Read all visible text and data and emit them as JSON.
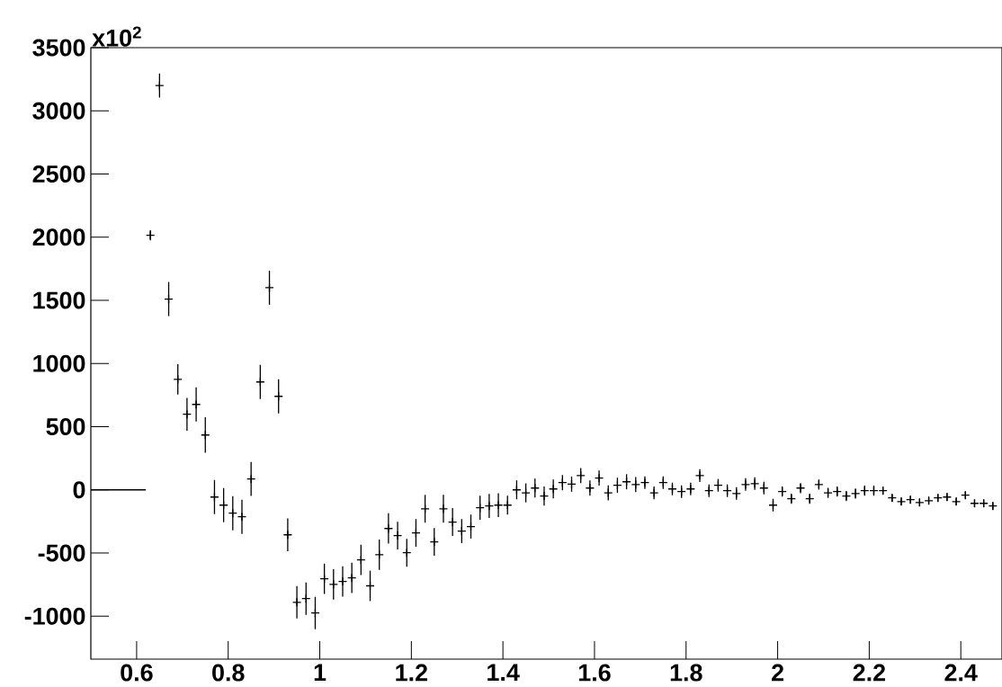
{
  "chart_data": {
    "type": "scatter",
    "annotations": [
      "x10$^{2}$"
    ],
    "series": [
      {
        "color": "#000000",
        "marker": "cross",
        "x": [
          0.63,
          0.65,
          0.67,
          0.69,
          0.71,
          0.73,
          0.75,
          0.77,
          0.79,
          0.81,
          0.83,
          0.85,
          0.87,
          0.89,
          0.91,
          0.93,
          0.95,
          0.97,
          0.99,
          1.01,
          1.03,
          1.05,
          1.07,
          1.09,
          1.11,
          1.13,
          1.15,
          1.17,
          1.19,
          1.21,
          1.23,
          1.25,
          1.27,
          1.29,
          1.31,
          1.33,
          1.35,
          1.37,
          1.39,
          1.41,
          1.43,
          1.45,
          1.47,
          1.49,
          1.51,
          1.53,
          1.55,
          1.57,
          1.59,
          1.61,
          1.63,
          1.65,
          1.67,
          1.69,
          1.71,
          1.73,
          1.75,
          1.77,
          1.79,
          1.81,
          1.83,
          1.85,
          1.87,
          1.89,
          1.91,
          1.93,
          1.95,
          1.97,
          1.99,
          2.01,
          2.03,
          2.05,
          2.07,
          2.09,
          2.11,
          2.13,
          2.15,
          2.17,
          2.19,
          2.21,
          2.23,
          2.25,
          2.27,
          2.29,
          2.31,
          2.33,
          2.35,
          2.37,
          2.39,
          2.41,
          2.43,
          2.45,
          2.47
        ],
        "values": [
          2015,
          3200,
          1510,
          875,
          598,
          676,
          434,
          -57,
          -121,
          -185,
          -213,
          86,
          854,
          1600,
          740,
          -356,
          -890,
          -861,
          -975,
          -704,
          -748,
          -725,
          -697,
          -555,
          -760,
          -513,
          -306,
          -362,
          -498,
          -341,
          -150,
          -412,
          -150,
          -255,
          -326,
          -291,
          -142,
          -128,
          -121,
          -121,
          0,
          -24,
          14,
          -49,
          7,
          57,
          45,
          113,
          14,
          93,
          -24,
          36,
          64,
          42,
          57,
          -24,
          57,
          7,
          -14,
          7,
          113,
          -7,
          36,
          -7,
          -29,
          42,
          49,
          14,
          -121,
          -14,
          -71,
          14,
          -71,
          42,
          -24,
          -14,
          -49,
          -29,
          -7,
          -7,
          -7,
          -64,
          -93,
          -78,
          -100,
          -86,
          -64,
          -57,
          -93,
          -42,
          -107,
          -107,
          -128
        ],
        "errors": [
          40,
          95,
          135,
          120,
          130,
          135,
          140,
          135,
          135,
          135,
          135,
          135,
          135,
          135,
          135,
          130,
          128,
          128,
          128,
          120,
          120,
          120,
          120,
          120,
          120,
          120,
          120,
          110,
          110,
          110,
          110,
          110,
          110,
          110,
          95,
          95,
          95,
          95,
          95,
          75,
          75,
          75,
          75,
          75,
          75,
          60,
          60,
          60,
          60,
          60,
          60,
          60,
          60,
          60,
          50,
          50,
          50,
          50,
          50,
          50,
          50,
          50,
          50,
          50,
          50,
          50,
          50,
          50,
          50,
          40,
          40,
          40,
          40,
          40,
          40,
          40,
          40,
          40,
          40,
          40,
          30,
          30,
          30,
          30,
          30,
          30,
          30,
          30,
          30,
          30,
          30,
          30,
          30
        ]
      },
      {
        "type": "line",
        "color": "#000000",
        "marker": "none",
        "x": [
          0.5,
          0.62
        ],
        "values": [
          0,
          0
        ]
      }
    ],
    "xlim": [
      0.5,
      2.49
    ],
    "ylim": [
      -1340,
      3500
    ],
    "xticks": [
      0.6,
      0.8,
      1,
      1.2,
      1.4,
      1.6,
      1.8,
      2,
      2.2,
      2.4
    ],
    "yticks": [
      -1000,
      -500,
      0,
      500,
      1000,
      1500,
      2000,
      2500,
      3000,
      3500
    ]
  }
}
